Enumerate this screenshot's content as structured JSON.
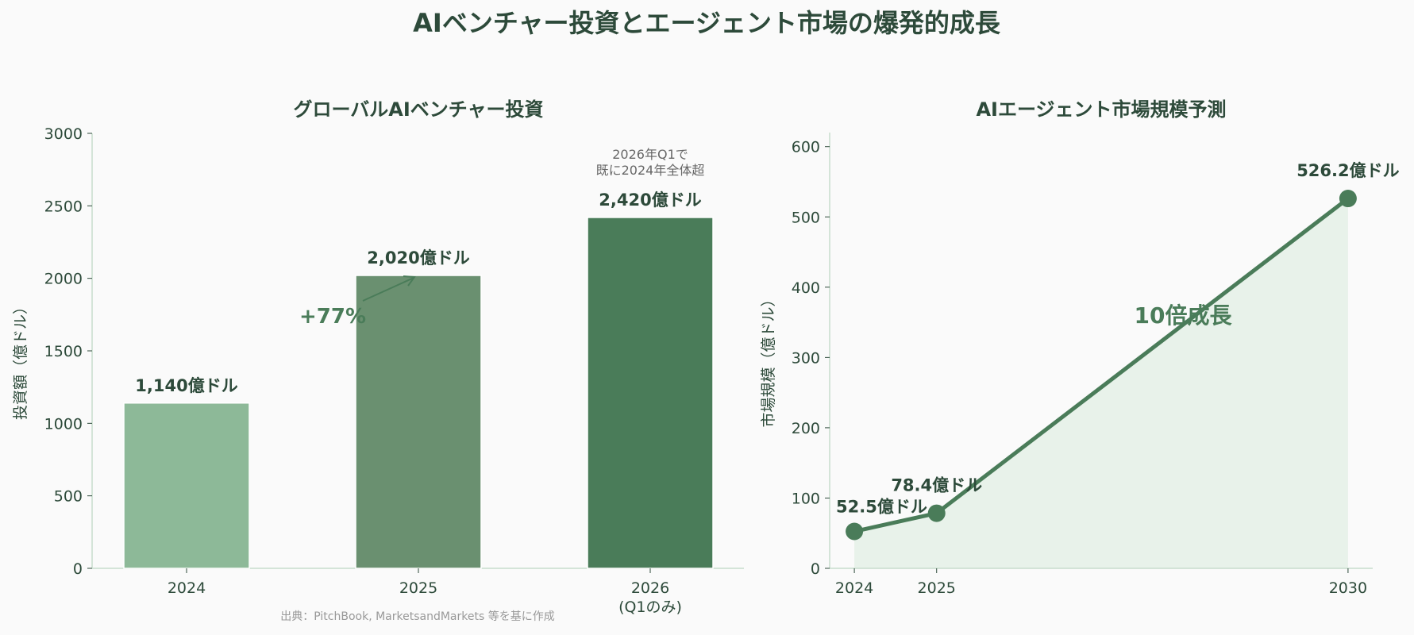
{
  "title": "AIベンチャー投資とエージェント市場の爆発的成長",
  "source": "出典：PitchBook, MarketsandMarkets 等を基に作成",
  "colors": {
    "text": "#2d4a3a",
    "accent": "#4a7c59",
    "bar_2024": "#8db998",
    "bar_2025": "#6a9070",
    "bar_2026": "#4a7c59",
    "fill": "#e8f2ea",
    "axis": "#c8dccd"
  },
  "chart_data": [
    {
      "type": "bar",
      "title": "グローバルAIベンチャー投資",
      "ylabel": "投資額（億ドル）",
      "xlabel": "",
      "categories": [
        "2024",
        "2025",
        "2026\n(Q1のみ)"
      ],
      "category_lines": [
        [
          "2024"
        ],
        [
          "2025"
        ],
        [
          "2026",
          "(Q1のみ)"
        ]
      ],
      "values": [
        1140,
        2020,
        2420
      ],
      "data_labels": [
        "1,140億ドル",
        "2,020億ドル",
        "2,420億ドル"
      ],
      "ylim": [
        0,
        3000
      ],
      "yticks": [
        0,
        500,
        1000,
        1500,
        2000,
        2500,
        3000
      ],
      "grid": false,
      "annotations": {
        "growth": "+77%",
        "note_lines": [
          "2026年Q1で",
          "既に2024年全体超"
        ]
      }
    },
    {
      "type": "area",
      "title": "AIエージェント市場規模予測",
      "ylabel": "市場規模（億ドル）",
      "xlabel": "",
      "x": [
        2024,
        2025,
        2030
      ],
      "xticks": [
        "2024",
        "2025",
        "2030"
      ],
      "values": [
        52.5,
        78.4,
        526.2
      ],
      "data_labels": [
        "52.5億ドル",
        "78.4億ドル",
        "526.2億ドル"
      ],
      "xlim": [
        2023.7,
        2030.3
      ],
      "ylim": [
        0,
        620
      ],
      "yticks": [
        0,
        100,
        200,
        300,
        400,
        500,
        600
      ],
      "grid": false,
      "annotations": {
        "growth": "10倍成長"
      }
    }
  ]
}
